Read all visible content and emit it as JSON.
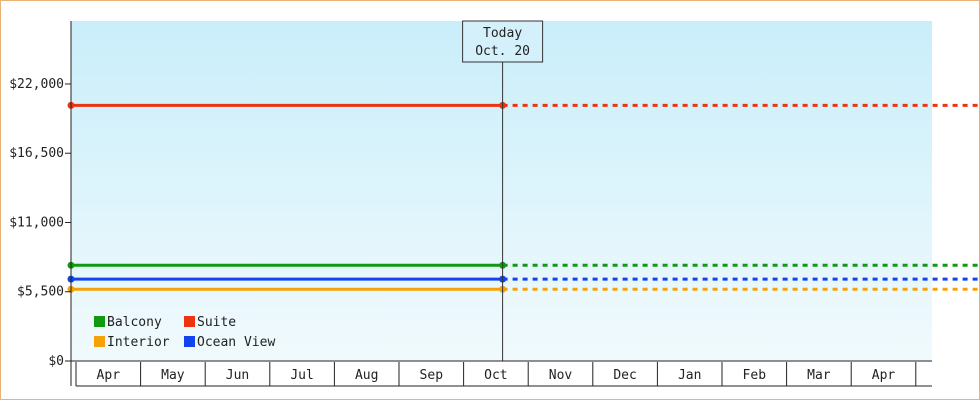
{
  "chart_data": {
    "type": "line",
    "title": "",
    "xlabel": "",
    "ylabel": "",
    "x_categories": [
      "Apr",
      "May",
      "Jun",
      "Jul",
      "Aug",
      "Sep",
      "Oct",
      "Nov",
      "Dec",
      "Jan",
      "Feb",
      "Mar",
      "Apr"
    ],
    "today_label": "Today",
    "today_date": "Oct. 20",
    "today_month_index": 6,
    "ylim": [
      0,
      27000
    ],
    "y_ticks": [
      0,
      5500,
      11000,
      16500,
      22000
    ],
    "y_tick_labels": [
      "$0",
      "$5,500",
      "$11,000",
      "$16,500",
      "$22,000"
    ],
    "grid": false,
    "legend_placement": "bottom-left",
    "series": [
      {
        "name": "Balcony",
        "color": "#119911",
        "value": 7600
      },
      {
        "name": "Suite",
        "color": "#ee3311",
        "value": 20300
      },
      {
        "name": "Interior",
        "color": "#f5a20a",
        "value": 5700
      },
      {
        "name": "Ocean View",
        "color": "#1144ee",
        "value": 6500
      }
    ]
  }
}
